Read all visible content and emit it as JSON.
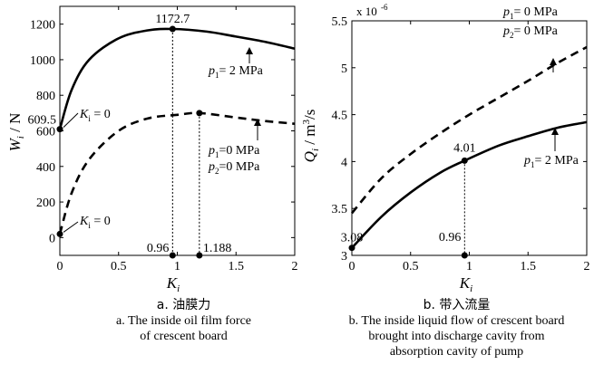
{
  "chart_data": [
    {
      "type": "line",
      "ylabel": "W_i / N",
      "xlabel": "K_i",
      "xlim": [
        0,
        2
      ],
      "ylim": [
        -100,
        1300
      ],
      "xticks": [
        "0",
        "0.5",
        "1",
        "1.5",
        "2"
      ],
      "yticks": [
        "0",
        "200",
        "400",
        "600",
        "800",
        "1000",
        "1200"
      ],
      "grid": false,
      "series": [
        {
          "label": "p1 = 2 MPa",
          "style": "solid",
          "points": [
            [
              0,
              609.5
            ],
            [
              0.1,
              830
            ],
            [
              0.25,
              1000
            ],
            [
              0.5,
              1120
            ],
            [
              0.75,
              1165
            ],
            [
              0.96,
              1172.7
            ],
            [
              1.25,
              1158
            ],
            [
              1.5,
              1130
            ],
            [
              1.75,
              1100
            ],
            [
              2.0,
              1062
            ]
          ]
        },
        {
          "label": "p1 = 0 MPa, p2 = 0 MPa",
          "style": "dashed",
          "points": [
            [
              0,
              20
            ],
            [
              0.1,
              250
            ],
            [
              0.25,
              440
            ],
            [
              0.5,
              600
            ],
            [
              0.75,
              670
            ],
            [
              1.0,
              690
            ],
            [
              1.188,
              700
            ],
            [
              1.5,
              675
            ],
            [
              1.75,
              655
            ],
            [
              2.0,
              640
            ]
          ]
        }
      ],
      "markers": [
        {
          "x": 0.96,
          "y": 1172.7,
          "label": "1172.7"
        },
        {
          "x": 1.188,
          "y": 700
        },
        {
          "x": 0,
          "y": 609.5,
          "label": "609.5"
        },
        {
          "x": 0,
          "y": 20
        },
        {
          "x": 0.96,
          "y": -100,
          "label": "0.96"
        },
        {
          "x": 1.188,
          "y": -100,
          "label": "1.188"
        }
      ],
      "annotations": [
        "609.5",
        "K_i = 0",
        "K_i = 0",
        "p1 = 2 MPa",
        "p1 = 0 MPa",
        "p2 = 0 MPa",
        "1172.7",
        "0.96",
        "1.188"
      ]
    },
    {
      "type": "line",
      "ylabel": "Q_i / m^3/s",
      "y_multiplier": "x 10^-6",
      "xlabel": "K_i",
      "xlim": [
        0,
        2
      ],
      "ylim": [
        3,
        5.5
      ],
      "xticks": [
        "0",
        "0.5",
        "1",
        "1.5",
        "2"
      ],
      "yticks": [
        "3",
        "3.5",
        "4",
        "4.5",
        "5",
        "5.5"
      ],
      "grid": false,
      "series": [
        {
          "label": "p1 = 0 MPa, p2 = 0 MPa",
          "style": "dashed",
          "points": [
            [
              0,
              3.45
            ],
            [
              0.25,
              3.82
            ],
            [
              0.5,
              4.08
            ],
            [
              0.75,
              4.3
            ],
            [
              1.0,
              4.5
            ],
            [
              1.25,
              4.68
            ],
            [
              1.5,
              4.86
            ],
            [
              1.75,
              5.05
            ],
            [
              2.0,
              5.22
            ]
          ]
        },
        {
          "label": "p1 = 2 MPa",
          "style": "solid",
          "points": [
            [
              0,
              3.08
            ],
            [
              0.25,
              3.41
            ],
            [
              0.5,
              3.67
            ],
            [
              0.75,
              3.88
            ],
            [
              0.96,
              4.01
            ],
            [
              1.25,
              4.17
            ],
            [
              1.5,
              4.27
            ],
            [
              1.75,
              4.36
            ],
            [
              2.0,
              4.42
            ]
          ]
        }
      ],
      "markers": [
        {
          "x": 0,
          "y": 3.08,
          "label": "3.08"
        },
        {
          "x": 0.96,
          "y": 4.01,
          "label": "4.01"
        },
        {
          "x": 0.96,
          "y": 3,
          "label": "0.96"
        }
      ],
      "annotations": [
        "p1 = 0 MPa",
        "p2 = 0 MPa",
        "p1 = 2 MPa",
        "4.01",
        "3.08",
        "0.96"
      ]
    }
  ],
  "captions": {
    "a_zh": "a. 油膜力",
    "a_en_1": "a. The inside oil film force",
    "a_en_2": "of crescent board",
    "b_zh": "b. 带入流量",
    "b_en_1": "b. The inside liquid flow of crescent board",
    "b_en_2": "brought into discharge cavity from",
    "b_en_3": "absorption cavity of pump"
  }
}
